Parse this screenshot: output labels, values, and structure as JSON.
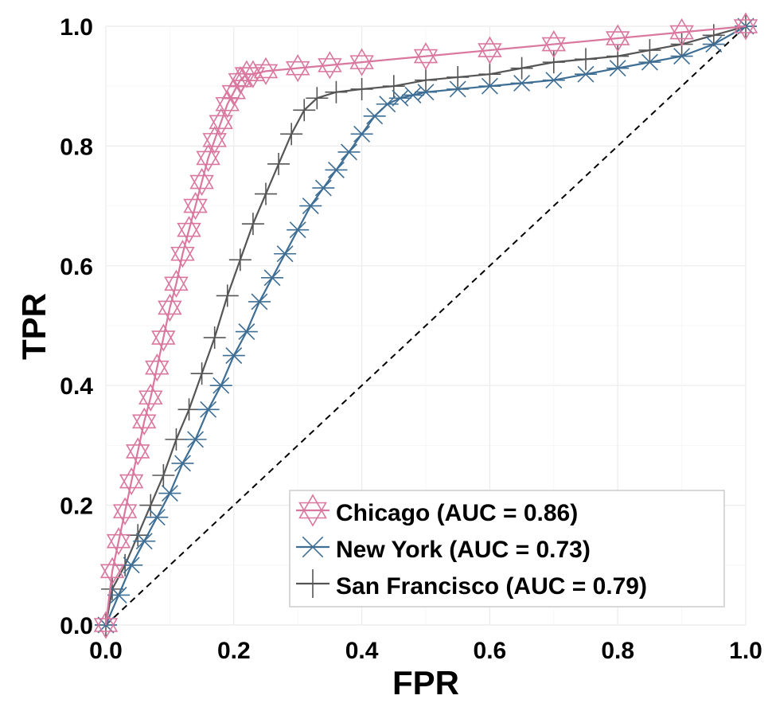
{
  "chart_data": {
    "type": "line",
    "title": "",
    "xlabel": "FPR",
    "ylabel": "TPR",
    "xlim": [
      0,
      1
    ],
    "ylim": [
      0,
      1
    ],
    "grid": true,
    "legend_position": "bottom-right",
    "x_ticks": [
      "0.0",
      "0.2",
      "0.4",
      "0.6",
      "0.8",
      "1.0"
    ],
    "y_ticks": [
      "0.0",
      "0.2",
      "0.4",
      "0.6",
      "0.8",
      "1.0"
    ],
    "diagonal_reference": {
      "x": [
        0,
        1
      ],
      "y": [
        0,
        1
      ],
      "style": "dashed",
      "color": "#000000"
    },
    "series": [
      {
        "name": "Chicago (AUC = 0.86)",
        "marker": "hexagram",
        "color": "#d9779e",
        "x": [
          0,
          0.01,
          0.02,
          0.03,
          0.04,
          0.05,
          0.06,
          0.07,
          0.08,
          0.09,
          0.1,
          0.11,
          0.12,
          0.13,
          0.14,
          0.15,
          0.16,
          0.17,
          0.18,
          0.19,
          0.2,
          0.21,
          0.22,
          0.23,
          0.25,
          0.3,
          0.35,
          0.4,
          0.5,
          0.6,
          0.7,
          0.8,
          0.9,
          1.0
        ],
        "y": [
          0,
          0.09,
          0.14,
          0.19,
          0.24,
          0.29,
          0.34,
          0.38,
          0.43,
          0.48,
          0.53,
          0.57,
          0.62,
          0.66,
          0.7,
          0.74,
          0.78,
          0.81,
          0.84,
          0.87,
          0.89,
          0.91,
          0.92,
          0.92,
          0.925,
          0.93,
          0.935,
          0.94,
          0.95,
          0.96,
          0.97,
          0.98,
          0.99,
          1.0
        ]
      },
      {
        "name": "New York (AUC = 0.73)",
        "marker": "asterisk",
        "color": "#3f6e94",
        "x": [
          0,
          0.02,
          0.04,
          0.06,
          0.08,
          0.1,
          0.12,
          0.14,
          0.16,
          0.18,
          0.2,
          0.22,
          0.24,
          0.26,
          0.28,
          0.3,
          0.32,
          0.34,
          0.36,
          0.38,
          0.4,
          0.42,
          0.44,
          0.46,
          0.48,
          0.5,
          0.55,
          0.6,
          0.65,
          0.7,
          0.75,
          0.8,
          0.85,
          0.9,
          0.95,
          1.0
        ],
        "y": [
          0,
          0.05,
          0.1,
          0.14,
          0.18,
          0.22,
          0.27,
          0.31,
          0.36,
          0.4,
          0.45,
          0.49,
          0.54,
          0.58,
          0.62,
          0.66,
          0.7,
          0.73,
          0.76,
          0.79,
          0.82,
          0.85,
          0.87,
          0.88,
          0.885,
          0.89,
          0.895,
          0.9,
          0.905,
          0.91,
          0.92,
          0.93,
          0.94,
          0.95,
          0.97,
          1.0
        ]
      },
      {
        "name": "San Francisco (AUC = 0.79)",
        "marker": "plus",
        "color": "#555555",
        "x": [
          0,
          0.01,
          0.03,
          0.05,
          0.07,
          0.09,
          0.11,
          0.13,
          0.15,
          0.17,
          0.19,
          0.21,
          0.23,
          0.25,
          0.27,
          0.29,
          0.31,
          0.33,
          0.36,
          0.4,
          0.45,
          0.5,
          0.55,
          0.6,
          0.65,
          0.7,
          0.75,
          0.8,
          0.85,
          0.9,
          0.95,
          1.0
        ],
        "y": [
          0,
          0.06,
          0.1,
          0.15,
          0.2,
          0.25,
          0.31,
          0.36,
          0.42,
          0.48,
          0.55,
          0.61,
          0.67,
          0.72,
          0.77,
          0.82,
          0.86,
          0.88,
          0.89,
          0.895,
          0.9,
          0.91,
          0.915,
          0.92,
          0.93,
          0.94,
          0.945,
          0.95,
          0.96,
          0.97,
          0.985,
          1.0
        ]
      }
    ]
  }
}
